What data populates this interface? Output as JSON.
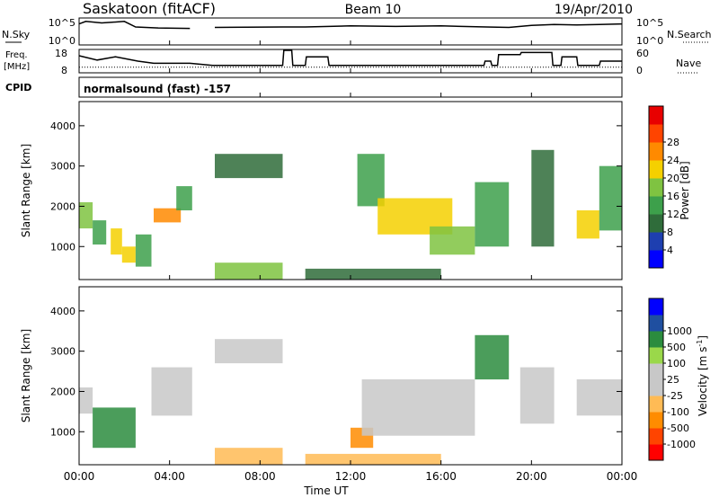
{
  "header": {
    "station": "Saskatoon (fitACF)",
    "beam": "Beam 10",
    "date": "19/Apr/2010"
  },
  "strip_labels": {
    "nsky": "N.Sky",
    "freq_top": "Freq.",
    "freq_unit": "[MHz]",
    "cpid": "CPID",
    "nsearch": "N.Search",
    "nave": "Nave",
    "cpid_value": "normalsound (fast) -157"
  },
  "strip_ticks": {
    "nsky_top": "10^5",
    "nsky_bottom": "10^0",
    "freq": [
      "18",
      "8"
    ],
    "nave": [
      "60",
      "0"
    ]
  },
  "chart_data": [
    {
      "type": "line",
      "title": "N.Sky / N.Search",
      "x_unit": "hours UT",
      "x": [
        0,
        0.3,
        1,
        2,
        2.5,
        3.5,
        4.9,
        5,
        5.9,
        6,
        9,
        10,
        12,
        14,
        16,
        18,
        19,
        20,
        21,
        22,
        23,
        24
      ],
      "series": [
        {
          "name": "N.Sky",
          "values": [
            4,
            4.5,
            4.2,
            4.5,
            3.4,
            3.2,
            3.1,
            null,
            null,
            3.3,
            3.4,
            3.4,
            3.6,
            3.5,
            3.6,
            3.4,
            3.3,
            3.7,
            3.9,
            3.8,
            3.9,
            4.0
          ]
        }
      ],
      "ylim_labels": [
        "10^0",
        "10^5"
      ]
    },
    {
      "type": "line",
      "title": "Freq. / Nave",
      "x_unit": "hours UT",
      "freq_ylim": [
        8,
        18
      ],
      "nave_ylim": [
        0,
        60
      ],
      "series": [
        {
          "name": "Freq.",
          "points": [
            [
              0,
              15.5
            ],
            [
              0.8,
              13.5
            ],
            [
              1.6,
              15
            ],
            [
              2.6,
              13
            ],
            [
              3.3,
              12
            ],
            [
              4.9,
              12
            ],
            [
              5.9,
              11
            ],
            [
              9,
              11
            ],
            [
              9.05,
              18
            ],
            [
              9.4,
              18
            ],
            [
              9.45,
              11
            ],
            [
              10,
              11
            ],
            [
              10.05,
              15
            ],
            [
              11,
              15
            ],
            [
              11.05,
              11
            ],
            [
              17.9,
              11
            ],
            [
              17.95,
              13
            ],
            [
              18.2,
              13
            ],
            [
              18.25,
              11
            ],
            [
              18.5,
              11
            ],
            [
              18.55,
              16
            ],
            [
              19.5,
              16
            ],
            [
              19.55,
              17
            ],
            [
              20.9,
              17
            ],
            [
              20.95,
              11
            ],
            [
              21.3,
              11
            ],
            [
              21.35,
              15
            ],
            [
              22,
              15
            ],
            [
              22.05,
              11
            ],
            [
              23,
              11
            ],
            [
              23.05,
              13
            ],
            [
              24,
              13
            ]
          ]
        },
        {
          "name": "Nave",
          "dotted": true,
          "constant": 13
        }
      ]
    },
    {
      "type": "heatmap",
      "ylabel": "Slant Range [km]",
      "yticks": [
        1000,
        2000,
        3000,
        4000
      ],
      "ylim": [
        180,
        4600
      ],
      "xlim": [
        0,
        24
      ],
      "colorbar": {
        "label": "Power [dB]",
        "ticks": [
          "4",
          "8",
          "12",
          "16",
          "20",
          "24",
          "28"
        ]
      },
      "regions": [
        {
          "t": [
            0.0,
            0.6
          ],
          "r": [
            1450,
            2100
          ],
          "v": 16
        },
        {
          "t": [
            0.6,
            1.2
          ],
          "r": [
            1050,
            1650
          ],
          "v": 14
        },
        {
          "t": [
            1.4,
            1.9
          ],
          "r": [
            800,
            1450
          ],
          "v": 20
        },
        {
          "t": [
            1.9,
            2.5
          ],
          "r": [
            600,
            1000
          ],
          "v": 22
        },
        {
          "t": [
            2.5,
            3.2
          ],
          "r": [
            500,
            1300
          ],
          "v": 12
        },
        {
          "t": [
            3.3,
            4.5
          ],
          "r": [
            1600,
            1950
          ],
          "v": 24
        },
        {
          "t": [
            4.3,
            5.0
          ],
          "r": [
            1900,
            2500
          ],
          "v": 14
        },
        {
          "t": [
            6.0,
            9.0
          ],
          "r": [
            2700,
            3300
          ],
          "v": 10
        },
        {
          "t": [
            6.0,
            9.0
          ],
          "r": [
            180,
            600
          ],
          "v": 18
        },
        {
          "t": [
            10.0,
            16.0
          ],
          "r": [
            180,
            450
          ],
          "v": 8
        },
        {
          "t": [
            12.3,
            13.5
          ],
          "r": [
            2000,
            3300
          ],
          "v": 12
        },
        {
          "t": [
            13.2,
            16.5
          ],
          "r": [
            1300,
            2200
          ],
          "v": 22
        },
        {
          "t": [
            15.5,
            17.5
          ],
          "r": [
            800,
            1500
          ],
          "v": 18
        },
        {
          "t": [
            17.5,
            19.0
          ],
          "r": [
            1000,
            2600
          ],
          "v": 14
        },
        {
          "t": [
            20.0,
            21.0
          ],
          "r": [
            1000,
            3400
          ],
          "v": 10
        },
        {
          "t": [
            22.0,
            23.0
          ],
          "r": [
            1200,
            1900
          ],
          "v": 20
        },
        {
          "t": [
            23.0,
            24.0
          ],
          "r": [
            1400,
            3000
          ],
          "v": 12
        }
      ]
    },
    {
      "type": "heatmap",
      "ylabel": "Slant Range [km]",
      "yticks": [
        1000,
        2000,
        3000,
        4000
      ],
      "ylim": [
        180,
        4600
      ],
      "xlim": [
        0,
        24
      ],
      "xlabel": "Time UT",
      "xticks": [
        "00:00",
        "04:00",
        "08:00",
        "12:00",
        "16:00",
        "20:00",
        "00:00"
      ],
      "colorbar": {
        "label": "Velocity [m s^-1]",
        "ticks": [
          "1000",
          "500",
          "100",
          "25",
          "-25",
          "-100",
          "-500",
          "-1000"
        ]
      },
      "regions": [
        {
          "t": [
            0.0,
            0.6
          ],
          "r": [
            1450,
            2100
          ],
          "v": 0
        },
        {
          "t": [
            0.6,
            2.5
          ],
          "r": [
            600,
            1600
          ],
          "v": 150
        },
        {
          "t": [
            3.2,
            5.0
          ],
          "r": [
            1400,
            2600
          ],
          "v": 0
        },
        {
          "t": [
            6.0,
            9.0
          ],
          "r": [
            2700,
            3300
          ],
          "v": 0
        },
        {
          "t": [
            6.0,
            9.0
          ],
          "r": [
            180,
            600
          ],
          "v": -80
        },
        {
          "t": [
            10.0,
            16.0
          ],
          "r": [
            180,
            450
          ],
          "v": -60
        },
        {
          "t": [
            12.0,
            13.0
          ],
          "r": [
            600,
            1100
          ],
          "v": -300
        },
        {
          "t": [
            12.5,
            17.5
          ],
          "r": [
            900,
            2300
          ],
          "v": 0
        },
        {
          "t": [
            17.5,
            19.0
          ],
          "r": [
            2300,
            3400
          ],
          "v": 200
        },
        {
          "t": [
            19.5,
            21.0
          ],
          "r": [
            1200,
            2600
          ],
          "v": 0
        },
        {
          "t": [
            22.0,
            24.0
          ],
          "r": [
            1400,
            2300
          ],
          "v": 0
        }
      ]
    }
  ]
}
